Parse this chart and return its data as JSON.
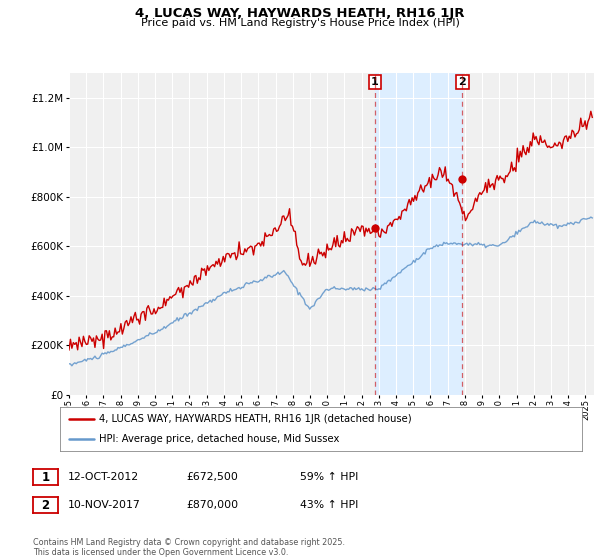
{
  "title": "4, LUCAS WAY, HAYWARDS HEATH, RH16 1JR",
  "subtitle": "Price paid vs. HM Land Registry's House Price Index (HPI)",
  "legend_line1": "4, LUCAS WAY, HAYWARDS HEATH, RH16 1JR (detached house)",
  "legend_line2": "HPI: Average price, detached house, Mid Sussex",
  "footnote": "Contains HM Land Registry data © Crown copyright and database right 2025.\nThis data is licensed under the Open Government Licence v3.0.",
  "event1_date": "12-OCT-2012",
  "event1_price": "£672,500",
  "event1_info": "59% ↑ HPI",
  "event2_date": "10-NOV-2017",
  "event2_price": "£870,000",
  "event2_info": "43% ↑ HPI",
  "event1_x": 2012.78,
  "event2_x": 2017.86,
  "event1_y": 672500,
  "event2_y": 870000,
  "red_color": "#cc0000",
  "blue_color": "#6699cc",
  "shade_color": "#ddeeff",
  "bg_color": "#f0f0f0",
  "ylim": [
    0,
    1300000
  ],
  "xlim_start": 1995.0,
  "xlim_end": 2025.5
}
